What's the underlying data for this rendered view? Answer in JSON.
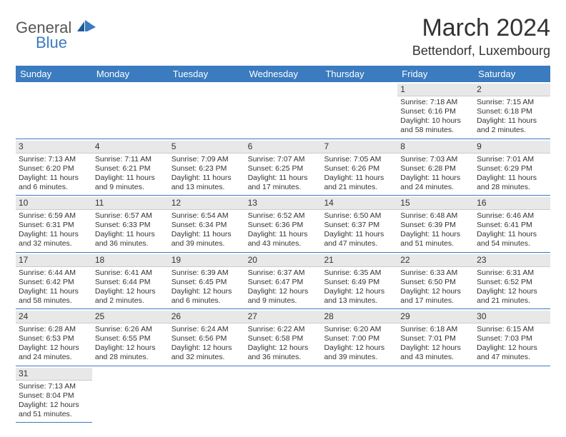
{
  "logo": {
    "general": "General",
    "blue": "Blue"
  },
  "title": "March 2024",
  "location": "Bettendorf, Luxembourg",
  "colors": {
    "header_bg": "#3b7bbf",
    "header_text": "#ffffff",
    "daynum_bg": "#e8e8e8",
    "text": "#333333",
    "logo_gray": "#555555",
    "logo_blue": "#3b7bbf"
  },
  "dayNames": [
    "Sunday",
    "Monday",
    "Tuesday",
    "Wednesday",
    "Thursday",
    "Friday",
    "Saturday"
  ],
  "weeks": [
    [
      null,
      null,
      null,
      null,
      null,
      {
        "n": "1",
        "sr": "7:18 AM",
        "ss": "6:16 PM",
        "dl": "10 hours and 58 minutes."
      },
      {
        "n": "2",
        "sr": "7:15 AM",
        "ss": "6:18 PM",
        "dl": "11 hours and 2 minutes."
      }
    ],
    [
      {
        "n": "3",
        "sr": "7:13 AM",
        "ss": "6:20 PM",
        "dl": "11 hours and 6 minutes."
      },
      {
        "n": "4",
        "sr": "7:11 AM",
        "ss": "6:21 PM",
        "dl": "11 hours and 9 minutes."
      },
      {
        "n": "5",
        "sr": "7:09 AM",
        "ss": "6:23 PM",
        "dl": "11 hours and 13 minutes."
      },
      {
        "n": "6",
        "sr": "7:07 AM",
        "ss": "6:25 PM",
        "dl": "11 hours and 17 minutes."
      },
      {
        "n": "7",
        "sr": "7:05 AM",
        "ss": "6:26 PM",
        "dl": "11 hours and 21 minutes."
      },
      {
        "n": "8",
        "sr": "7:03 AM",
        "ss": "6:28 PM",
        "dl": "11 hours and 24 minutes."
      },
      {
        "n": "9",
        "sr": "7:01 AM",
        "ss": "6:29 PM",
        "dl": "11 hours and 28 minutes."
      }
    ],
    [
      {
        "n": "10",
        "sr": "6:59 AM",
        "ss": "6:31 PM",
        "dl": "11 hours and 32 minutes."
      },
      {
        "n": "11",
        "sr": "6:57 AM",
        "ss": "6:33 PM",
        "dl": "11 hours and 36 minutes."
      },
      {
        "n": "12",
        "sr": "6:54 AM",
        "ss": "6:34 PM",
        "dl": "11 hours and 39 minutes."
      },
      {
        "n": "13",
        "sr": "6:52 AM",
        "ss": "6:36 PM",
        "dl": "11 hours and 43 minutes."
      },
      {
        "n": "14",
        "sr": "6:50 AM",
        "ss": "6:37 PM",
        "dl": "11 hours and 47 minutes."
      },
      {
        "n": "15",
        "sr": "6:48 AM",
        "ss": "6:39 PM",
        "dl": "11 hours and 51 minutes."
      },
      {
        "n": "16",
        "sr": "6:46 AM",
        "ss": "6:41 PM",
        "dl": "11 hours and 54 minutes."
      }
    ],
    [
      {
        "n": "17",
        "sr": "6:44 AM",
        "ss": "6:42 PM",
        "dl": "11 hours and 58 minutes."
      },
      {
        "n": "18",
        "sr": "6:41 AM",
        "ss": "6:44 PM",
        "dl": "12 hours and 2 minutes."
      },
      {
        "n": "19",
        "sr": "6:39 AM",
        "ss": "6:45 PM",
        "dl": "12 hours and 6 minutes."
      },
      {
        "n": "20",
        "sr": "6:37 AM",
        "ss": "6:47 PM",
        "dl": "12 hours and 9 minutes."
      },
      {
        "n": "21",
        "sr": "6:35 AM",
        "ss": "6:49 PM",
        "dl": "12 hours and 13 minutes."
      },
      {
        "n": "22",
        "sr": "6:33 AM",
        "ss": "6:50 PM",
        "dl": "12 hours and 17 minutes."
      },
      {
        "n": "23",
        "sr": "6:31 AM",
        "ss": "6:52 PM",
        "dl": "12 hours and 21 minutes."
      }
    ],
    [
      {
        "n": "24",
        "sr": "6:28 AM",
        "ss": "6:53 PM",
        "dl": "12 hours and 24 minutes."
      },
      {
        "n": "25",
        "sr": "6:26 AM",
        "ss": "6:55 PM",
        "dl": "12 hours and 28 minutes."
      },
      {
        "n": "26",
        "sr": "6:24 AM",
        "ss": "6:56 PM",
        "dl": "12 hours and 32 minutes."
      },
      {
        "n": "27",
        "sr": "6:22 AM",
        "ss": "6:58 PM",
        "dl": "12 hours and 36 minutes."
      },
      {
        "n": "28",
        "sr": "6:20 AM",
        "ss": "7:00 PM",
        "dl": "12 hours and 39 minutes."
      },
      {
        "n": "29",
        "sr": "6:18 AM",
        "ss": "7:01 PM",
        "dl": "12 hours and 43 minutes."
      },
      {
        "n": "30",
        "sr": "6:15 AM",
        "ss": "7:03 PM",
        "dl": "12 hours and 47 minutes."
      }
    ],
    [
      {
        "n": "31",
        "sr": "7:13 AM",
        "ss": "8:04 PM",
        "dl": "12 hours and 51 minutes."
      },
      null,
      null,
      null,
      null,
      null,
      null
    ]
  ],
  "labels": {
    "sunrise": "Sunrise:",
    "sunset": "Sunset:",
    "daylight": "Daylight:"
  }
}
